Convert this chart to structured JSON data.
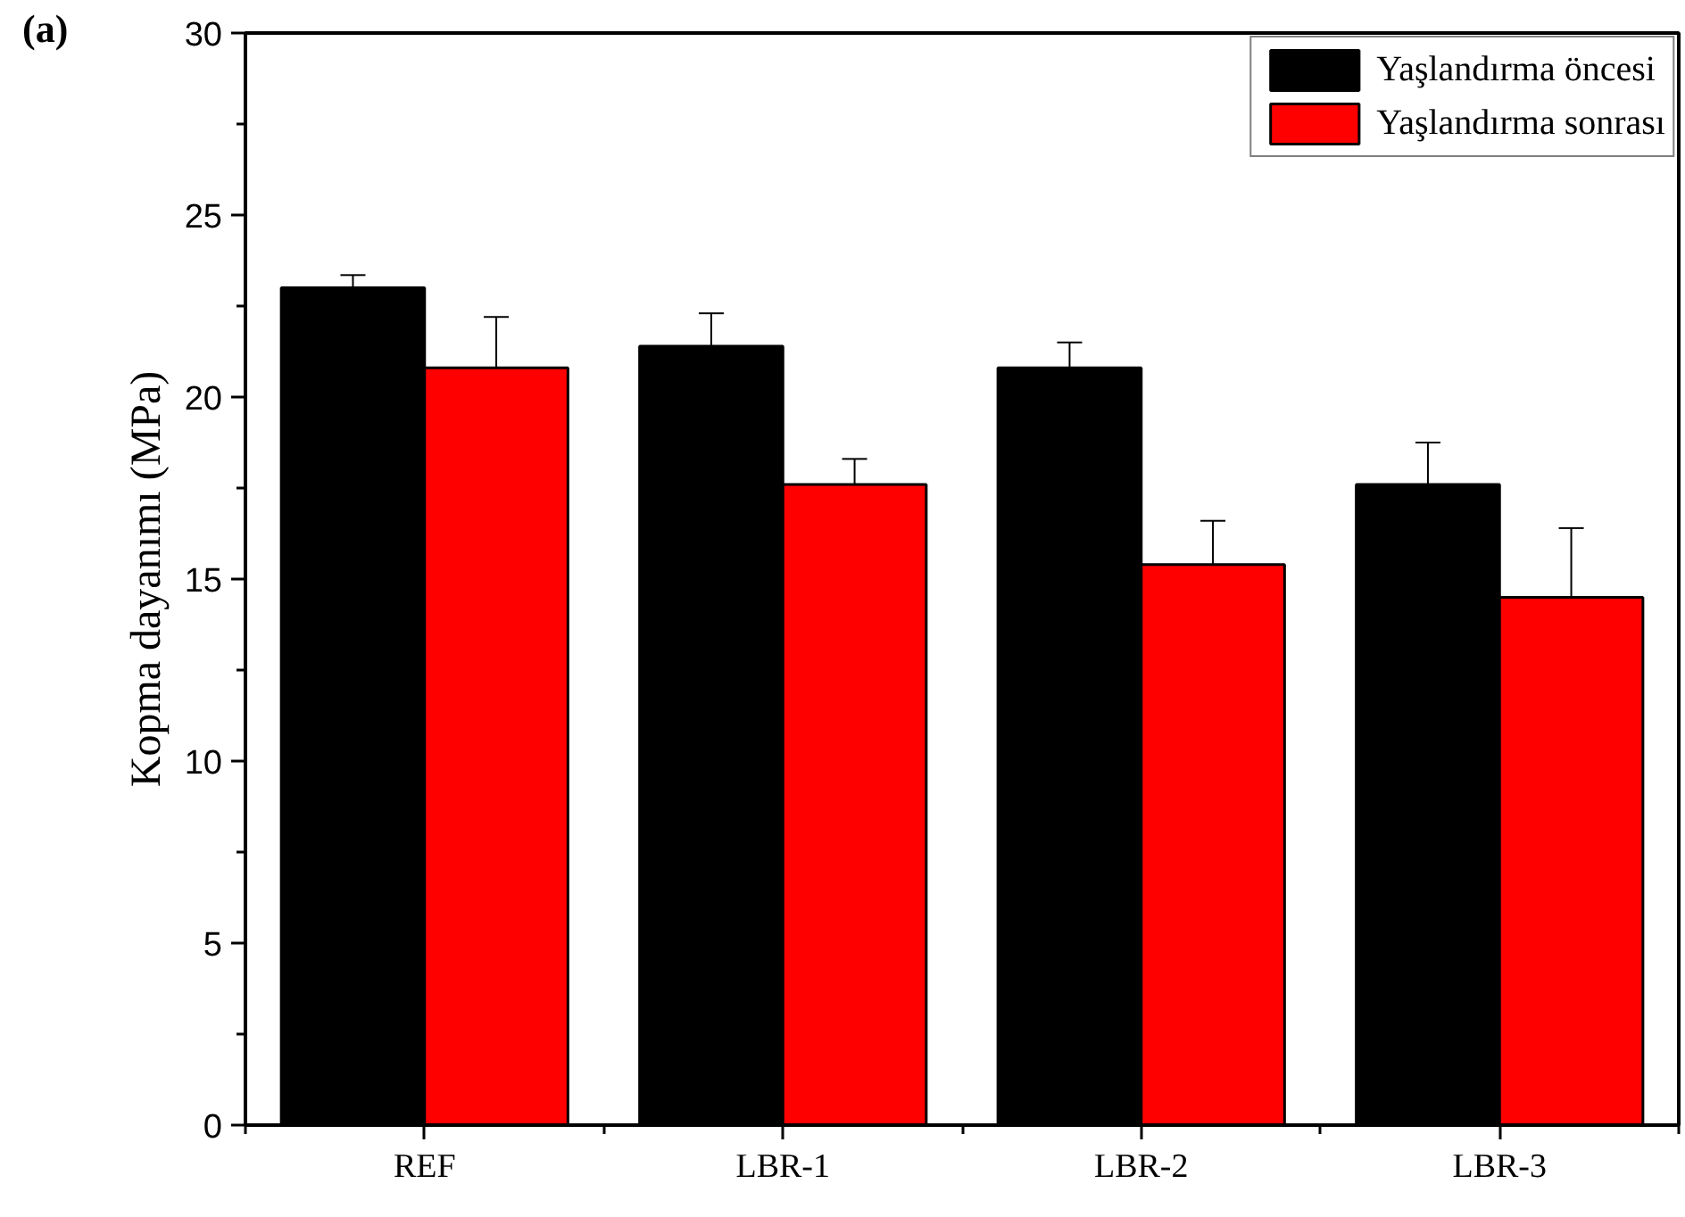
{
  "chart_data": {
    "type": "bar",
    "title": "(a)",
    "ylabel": "Kopma dayanımı (MPa)",
    "categories": [
      "REF",
      "LBR-1",
      "LBR-2",
      "LBR-3"
    ],
    "series": [
      {
        "name": "Yaşlandırma öncesi",
        "color": "#000000",
        "values": [
          23.0,
          21.4,
          20.8,
          17.6
        ],
        "errors": [
          0.35,
          0.9,
          0.7,
          1.15
        ]
      },
      {
        "name": "Yaşlandırma sonrası",
        "color": "#ff0000",
        "values": [
          20.8,
          17.6,
          15.4,
          14.5
        ],
        "errors": [
          1.4,
          0.7,
          1.2,
          1.9
        ]
      }
    ],
    "ylim": [
      0,
      30
    ],
    "yticks": [
      0,
      5,
      10,
      15,
      20,
      25,
      30
    ],
    "grid": false,
    "legend": "top right"
  }
}
